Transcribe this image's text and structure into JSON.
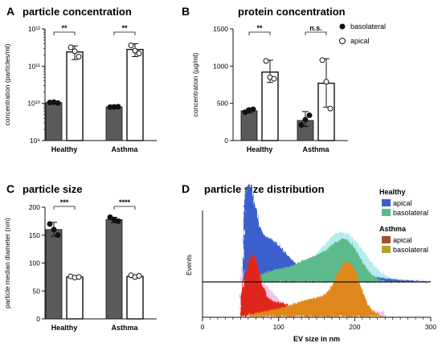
{
  "panel_labels": [
    "A",
    "B",
    "C",
    "D"
  ],
  "legend": {
    "items": [
      "basolateral",
      "apical"
    ]
  },
  "colors": {
    "bar": "#5a5a5a",
    "healthy_apical": "#3a5fcd",
    "healthy_basolateral": "#5dba8a",
    "asthma_apical": "#e0281e",
    "asthma_basolateral": "#e0871c",
    "pink": "#f3c6e8",
    "cyan": "#b7ecef"
  },
  "chart_data": [
    {
      "type": "bar",
      "title": "particle concentration",
      "ylabel": "concentration (particles/ml)",
      "categories": [
        "Healthy",
        "Asthma"
      ],
      "yscale": "log",
      "ylim": [
        1000000000.0,
        1000000000000.0
      ],
      "ytick_labels": [
        "10⁹",
        "10¹⁰",
        "10¹¹",
        "10¹²"
      ],
      "series": [
        {
          "name": "basolateral",
          "values": [
            10500000000.0,
            8000000000.0
          ],
          "err": [
            [
              10000000000.0,
              11200000000.0
            ],
            [
              7800000000.0,
              8200000000.0
            ]
          ],
          "points": [
            [
              10500000000.0,
              10800000000.0,
              10200000000.0
            ],
            [
              7900000000.0,
              8000000000.0,
              8100000000.0
            ]
          ]
        },
        {
          "name": "apical",
          "values": [
            240000000000.0,
            280000000000.0
          ],
          "err": [
            [
              150000000000.0,
              350000000000.0
            ],
            [
              180000000000.0,
              400000000000.0
            ]
          ],
          "points": [
            [
              320000000000.0,
              250000000000.0,
              180000000000.0
            ],
            [
              360000000000.0,
              260000000000.0,
              220000000000.0
            ]
          ]
        }
      ],
      "significance": [
        "**",
        "**"
      ]
    },
    {
      "type": "bar",
      "title": "protein concentration",
      "ylabel": "concentration (µg/ml)",
      "categories": [
        "Healthy",
        "Asthma"
      ],
      "ylim": [
        0,
        1500
      ],
      "yticks": [
        0,
        500,
        1000,
        1500
      ],
      "series": [
        {
          "name": "basolateral",
          "values": [
            400,
            270
          ],
          "err": [
            [
              370,
              430
            ],
            [
              190,
              390
            ]
          ],
          "points": [
            [
              380,
              410,
              420
            ],
            [
              210,
              280,
              340
            ]
          ]
        },
        {
          "name": "apical",
          "values": [
            920,
            770
          ],
          "err": [
            [
              780,
              1080
            ],
            [
              450,
              1100
            ]
          ],
          "points": [
            [
              1070,
              850,
              830
            ],
            [
              1080,
              790,
              430
            ]
          ]
        }
      ],
      "significance": [
        "**",
        "n.s."
      ]
    },
    {
      "type": "bar",
      "title": "particle size",
      "ylabel": "particle median diameter (nm)",
      "categories": [
        "Healthy",
        "Asthma"
      ],
      "ylim": [
        0,
        200
      ],
      "yticks": [
        0,
        50,
        100,
        150,
        200
      ],
      "series": [
        {
          "name": "basolateral",
          "values": [
            160,
            178
          ],
          "err": [
            [
              148,
              173
            ],
            [
              172,
              182
            ]
          ],
          "points": [
            [
              170,
              160,
              150
            ],
            [
              182,
              178,
              175
            ]
          ]
        },
        {
          "name": "apical",
          "values": [
            75,
            76
          ],
          "err": [
            [
              73,
              77
            ],
            [
              74,
              78
            ]
          ],
          "points": [
            [
              76,
              74,
              75
            ],
            [
              78,
              75,
              77
            ]
          ]
        }
      ],
      "significance": [
        "***",
        "****"
      ]
    },
    {
      "type": "area",
      "title": "particle size distribution",
      "xlabel": "EV size in nm",
      "ylabel": "Events",
      "xlim": [
        0,
        300
      ],
      "xticks": [
        0,
        100,
        200,
        300
      ],
      "groups": [
        {
          "name": "Healthy",
          "series": [
            {
              "name": "apical",
              "peak_x": 60
            },
            {
              "name": "basolateral",
              "peak_x": 190
            }
          ]
        },
        {
          "name": "Asthma",
          "series": [
            {
              "name": "apical",
              "peak_x": 65
            },
            {
              "name": "basolateral",
              "peak_x": 195
            }
          ]
        }
      ]
    }
  ]
}
